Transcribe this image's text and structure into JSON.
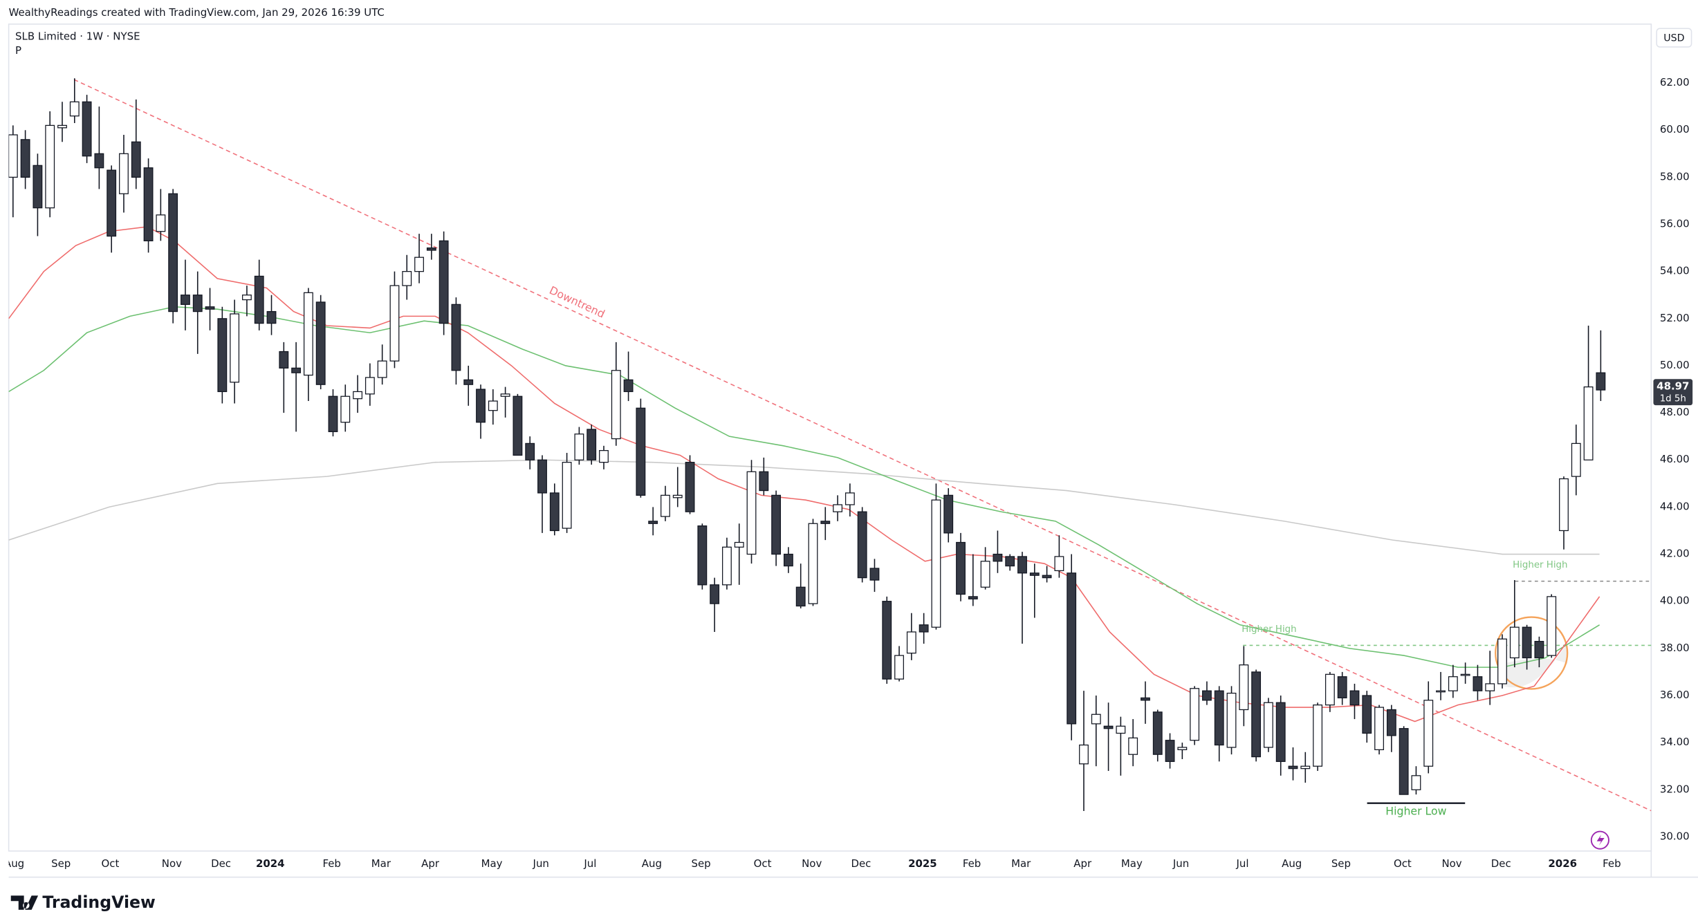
{
  "header": {
    "credit": "WealthyReadings created with TradingView.com, Jan 29, 2026 16:39 UTC",
    "symbol": "SLB Limited · 1W · NYSE",
    "flag": "P",
    "currency": "USD",
    "logo": "TradingView"
  },
  "chart_data": {
    "type": "candlestick",
    "up_color": "#ffffff",
    "down_color": "#363a45",
    "edge_color": "#131722",
    "xlim": [
      -0.35,
      133.1
    ],
    "ylim": [
      29.4,
      64.5
    ],
    "grid": false,
    "xticks": [
      {
        "value": 0.1,
        "label": "Aug"
      },
      {
        "value": 3.9,
        "label": "Sep"
      },
      {
        "value": 7.9,
        "label": "Oct"
      },
      {
        "value": 12.9,
        "label": "Nov"
      },
      {
        "value": 16.9,
        "label": "Dec"
      },
      {
        "value": 20.9,
        "label": "2024"
      },
      {
        "value": 25.9,
        "label": "Feb"
      },
      {
        "value": 29.9,
        "label": "Mar"
      },
      {
        "value": 33.9,
        "label": "Apr"
      },
      {
        "value": 38.9,
        "label": "May"
      },
      {
        "value": 42.9,
        "label": "Jun"
      },
      {
        "value": 46.9,
        "label": "Jul"
      },
      {
        "value": 51.9,
        "label": "Aug"
      },
      {
        "value": 55.9,
        "label": "Sep"
      },
      {
        "value": 60.9,
        "label": "Oct"
      },
      {
        "value": 64.9,
        "label": "Nov"
      },
      {
        "value": 68.9,
        "label": "Dec"
      },
      {
        "value": 73.9,
        "label": "2025"
      },
      {
        "value": 77.9,
        "label": "Feb"
      },
      {
        "value": 81.9,
        "label": "Mar"
      },
      {
        "value": 86.9,
        "label": "Apr"
      },
      {
        "value": 90.9,
        "label": "May"
      },
      {
        "value": 94.9,
        "label": "Jun"
      },
      {
        "value": 99.9,
        "label": "Jul"
      },
      {
        "value": 103.9,
        "label": "Aug"
      },
      {
        "value": 107.9,
        "label": "Sep"
      },
      {
        "value": 112.9,
        "label": "Oct"
      },
      {
        "value": 116.9,
        "label": "Nov"
      },
      {
        "value": 120.9,
        "label": "Dec"
      },
      {
        "value": 125.9,
        "label": "2026"
      },
      {
        "value": 129.9,
        "label": "Feb"
      }
    ],
    "yticks": [
      {
        "value": 30,
        "label": "30.00"
      },
      {
        "value": 32,
        "label": "32.00"
      },
      {
        "value": 34,
        "label": "34.00"
      },
      {
        "value": 36,
        "label": "36.00"
      },
      {
        "value": 38,
        "label": "38.00"
      },
      {
        "value": 40,
        "label": "40.00"
      },
      {
        "value": 42,
        "label": "42.00"
      },
      {
        "value": 44,
        "label": "44.00"
      },
      {
        "value": 46,
        "label": "46.00"
      },
      {
        "value": 48,
        "label": "48.00"
      },
      {
        "value": 50,
        "label": "50.00"
      },
      {
        "value": 52,
        "label": "52.00"
      },
      {
        "value": 54,
        "label": "54.00"
      },
      {
        "value": 56,
        "label": "56.00"
      },
      {
        "value": 58,
        "label": "58.00"
      },
      {
        "value": 60,
        "label": "60.00"
      },
      {
        "value": 62,
        "label": "62.00"
      }
    ],
    "open": [
      58.0,
      59.6,
      58.5,
      56.7,
      60.1,
      60.6,
      61.2,
      59.0,
      58.3,
      57.3,
      59.5,
      58.4,
      55.7,
      57.3,
      53.0,
      53.0,
      52.5,
      52.0,
      49.3,
      52.8,
      53.8,
      52.3,
      50.6,
      49.9,
      49.6,
      52.7,
      48.7,
      47.6,
      48.6,
      48.8,
      49.5,
      50.2,
      53.4,
      54.0,
      55.0,
      55.3,
      52.6,
      49.4,
      49.0,
      48.1,
      48.7,
      48.7,
      46.7,
      46.0,
      44.6,
      43.1,
      46.0,
      47.3,
      45.9,
      46.9,
      49.4,
      48.2,
      43.4,
      43.6,
      44.4,
      45.9,
      43.2,
      40.7,
      40.7,
      42.3,
      42.0,
      45.5,
      44.5,
      42.0,
      40.6,
      39.9,
      43.4,
      43.8,
      44.1,
      43.8,
      41.4,
      40.0,
      36.7,
      37.8,
      39.0,
      38.9,
      44.5,
      42.5,
      40.2,
      40.6,
      42.0,
      41.9,
      41.9,
      41.2,
      41.1,
      41.3,
      41.2,
      33.1,
      34.8,
      34.7,
      34.4,
      33.5,
      35.9,
      35.3,
      34.1,
      33.7,
      34.1,
      36.2,
      36.2,
      33.8,
      35.4,
      37.0,
      33.8,
      35.7,
      33.0,
      32.9,
      33.0,
      35.6,
      36.8,
      36.2,
      36.0,
      33.7,
      35.4,
      34.6,
      32.0,
      33.0,
      36.2,
      36.2,
      36.9,
      36.8,
      36.2,
      36.5,
      37.6,
      38.9,
      38.3,
      37.7,
      43.0,
      45.3,
      46.0,
      49.7
    ],
    "high": [
      60.2,
      60.0,
      59.0,
      60.8,
      61.2,
      62.2,
      61.5,
      61.0,
      58.5,
      59.8,
      61.3,
      58.8,
      57.5,
      57.5,
      54.5,
      54.0,
      53.3,
      52.5,
      52.8,
      53.4,
      54.5,
      53.0,
      51.0,
      51.0,
      53.3,
      53.0,
      49.0,
      49.2,
      49.6,
      50.1,
      50.9,
      54.0,
      54.7,
      55.6,
      55.6,
      55.7,
      52.9,
      50.0,
      49.2,
      49.0,
      49.1,
      48.8,
      47.0,
      46.2,
      45.0,
      46.3,
      47.4,
      47.5,
      46.6,
      51.0,
      50.6,
      48.6,
      44.0,
      44.9,
      45.7,
      46.2,
      43.3,
      41.0,
      42.7,
      43.3,
      46.0,
      46.1,
      44.7,
      42.3,
      41.6,
      43.5,
      44.0,
      44.5,
      45.0,
      44.0,
      41.8,
      40.2,
      38.1,
      39.5,
      39.5,
      45.0,
      44.8,
      42.9,
      42.0,
      42.3,
      43.0,
      42.0,
      42.1,
      41.6,
      41.5,
      42.8,
      42.0,
      36.2,
      36.0,
      35.7,
      35.1,
      35.0,
      36.6,
      35.4,
      34.4,
      34.0,
      36.4,
      36.6,
      36.4,
      36.4,
      38.1,
      37.1,
      35.9,
      36.0,
      33.8,
      33.6,
      35.7,
      37.0,
      37.0,
      36.5,
      36.2,
      35.6,
      35.6,
      34.7,
      33.0,
      36.6,
      37.0,
      37.3,
      37.4,
      37.3,
      37.9,
      38.6,
      40.9,
      39.0,
      38.5,
      40.3,
      45.3,
      47.5,
      51.7,
      51.5
    ],
    "low": [
      56.3,
      57.5,
      55.5,
      56.3,
      59.5,
      60.3,
      58.6,
      57.5,
      54.8,
      56.5,
      57.5,
      54.8,
      55.3,
      51.8,
      51.5,
      50.5,
      51.5,
      48.4,
      48.4,
      52.1,
      51.5,
      51.3,
      48.0,
      47.2,
      48.5,
      49.0,
      47.0,
      47.2,
      48.0,
      48.3,
      49.2,
      49.9,
      52.8,
      53.5,
      54.5,
      51.3,
      49.2,
      48.3,
      46.9,
      47.5,
      47.8,
      46.2,
      45.6,
      42.9,
      42.8,
      42.9,
      45.8,
      45.8,
      45.6,
      46.6,
      48.5,
      44.4,
      42.8,
      43.4,
      44.0,
      43.7,
      40.5,
      38.7,
      40.5,
      40.7,
      41.6,
      44.5,
      41.5,
      41.2,
      39.7,
      39.8,
      42.6,
      43.4,
      43.6,
      40.8,
      40.4,
      36.5,
      36.6,
      37.5,
      38.2,
      38.8,
      42.5,
      40.0,
      39.8,
      40.5,
      41.2,
      41.3,
      38.2,
      39.3,
      40.8,
      41.0,
      34.1,
      31.1,
      33.0,
      32.8,
      32.6,
      33.0,
      34.8,
      33.2,
      32.9,
      33.3,
      33.9,
      35.6,
      33.2,
      33.5,
      34.7,
      33.2,
      33.6,
      32.6,
      32.4,
      32.3,
      32.8,
      35.3,
      35.6,
      35.0,
      34.0,
      33.5,
      33.6,
      31.8,
      31.8,
      32.7,
      35.8,
      35.9,
      36.5,
      35.8,
      35.6,
      36.3,
      37.2,
      37.1,
      37.2,
      37.6,
      42.2,
      44.5,
      46.0,
      48.5
    ],
    "close": [
      59.8,
      58.0,
      56.7,
      60.2,
      60.2,
      61.2,
      58.9,
      58.4,
      55.5,
      59.0,
      58.0,
      55.3,
      56.4,
      52.3,
      52.6,
      52.3,
      52.4,
      48.9,
      52.2,
      53.0,
      51.8,
      51.8,
      49.9,
      49.7,
      53.1,
      49.2,
      47.2,
      48.7,
      48.9,
      49.5,
      50.2,
      53.4,
      54.0,
      54.6,
      54.9,
      51.8,
      49.8,
      49.2,
      47.6,
      48.5,
      48.8,
      46.2,
      46.0,
      44.6,
      43.0,
      45.9,
      47.1,
      46.0,
      46.4,
      49.8,
      48.9,
      44.5,
      43.3,
      44.5,
      44.5,
      43.8,
      40.7,
      39.9,
      42.3,
      42.5,
      45.5,
      44.7,
      42.0,
      41.5,
      39.8,
      43.3,
      43.3,
      44.1,
      44.6,
      41.0,
      40.9,
      36.7,
      37.7,
      38.7,
      38.7,
      44.3,
      42.9,
      40.3,
      40.1,
      41.7,
      41.7,
      41.5,
      41.2,
      41.1,
      41.0,
      41.9,
      34.8,
      33.9,
      35.2,
      34.6,
      34.7,
      34.2,
      35.8,
      33.5,
      33.2,
      33.8,
      36.3,
      35.8,
      33.9,
      36.1,
      37.3,
      33.4,
      35.7,
      33.2,
      32.9,
      33.0,
      35.6,
      36.9,
      35.9,
      35.6,
      34.4,
      35.5,
      34.3,
      31.8,
      32.6,
      35.8,
      36.2,
      36.8,
      36.9,
      36.2,
      36.5,
      38.4,
      38.9,
      37.6,
      37.6,
      40.2,
      45.2,
      46.7,
      49.1,
      48.97
    ],
    "countdown": "1d 5h",
    "ma_lines": [
      {
        "color": "#c9c9c9",
        "x": [
          -0.35,
          7.8,
          16.6,
          25.5,
          34.3,
          43.1,
          52.0,
          60.8,
          69.7,
          78.5,
          85.6,
          94.4,
          103.3,
          112.1,
          121.0,
          128.9
        ],
        "values": [
          42.6,
          44.0,
          45.0,
          45.3,
          45.9,
          46.0,
          45.9,
          45.7,
          45.4,
          45.0,
          44.7,
          44.1,
          43.4,
          42.6,
          42.0,
          42.0
        ]
      },
      {
        "color": "#6cc070",
        "x": [
          -0.35,
          2.5,
          6.0,
          9.5,
          13.1,
          16.6,
          20.6,
          24.6,
          29.0,
          33.4,
          36.96,
          41.4,
          44.9,
          49.3,
          53.8,
          58.2,
          62.6,
          67.0,
          71.4,
          75.9,
          80.3,
          84.7,
          88.2,
          92.7,
          96.2,
          99.7,
          104.2,
          108.6,
          113.0,
          117.4,
          121.0,
          124.5,
          128.9
        ],
        "values": [
          48.9,
          49.8,
          51.4,
          52.1,
          52.5,
          52.4,
          52.1,
          51.7,
          51.4,
          51.9,
          51.7,
          50.7,
          50.0,
          49.6,
          48.2,
          47.0,
          46.6,
          46.1,
          45.2,
          44.3,
          43.8,
          43.4,
          42.4,
          41.0,
          39.9,
          39.0,
          38.5,
          38.0,
          37.7,
          37.2,
          37.2,
          37.6,
          39.0
        ]
      },
      {
        "color": "#ef6b6b",
        "x": [
          -0.35,
          2.5,
          5.1,
          7.8,
          10.9,
          13.1,
          16.6,
          20.6,
          22.8,
          25.5,
          29.0,
          31.7,
          34.3,
          36.96,
          40.5,
          44.0,
          47.6,
          51.1,
          54.2,
          57.3,
          60.8,
          64.4,
          67.9,
          71.4,
          74.1,
          76.7,
          80.3,
          83.8,
          86.0,
          89.1,
          92.7,
          96.2,
          99.7,
          103.3,
          106.8,
          110.3,
          113.9,
          117.4,
          121.0,
          123.6,
          126.3,
          128.9
        ],
        "values": [
          52.0,
          54.0,
          55.1,
          55.7,
          55.9,
          55.3,
          53.7,
          53.3,
          52.3,
          51.7,
          51.6,
          52.1,
          52.1,
          51.4,
          50.0,
          48.4,
          47.3,
          46.6,
          46.2,
          45.2,
          44.5,
          44.3,
          43.9,
          42.6,
          41.7,
          42.0,
          41.9,
          41.6,
          41.0,
          38.7,
          36.9,
          36.0,
          35.7,
          35.5,
          35.5,
          35.6,
          34.9,
          35.6,
          36.0,
          36.4,
          38.3,
          40.2
        ]
      }
    ],
    "annotations": [
      "Downtrend",
      "Higher High",
      "Higher High",
      "Higher Low"
    ]
  }
}
